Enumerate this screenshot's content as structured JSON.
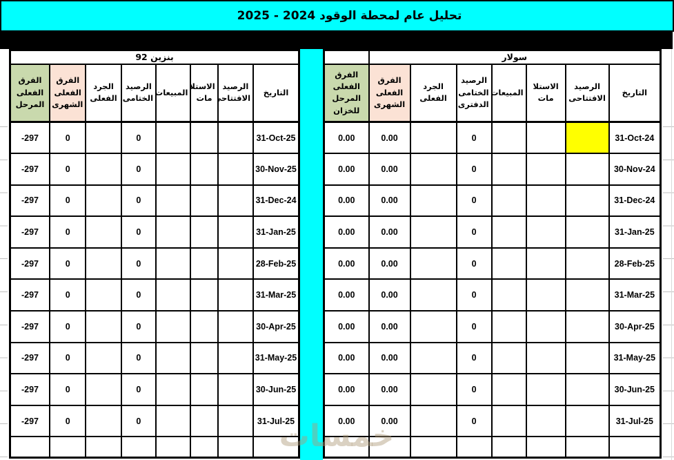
{
  "title": "تحليل عام لمحطة الوقود 2024 - 2025",
  "watermark": "خمسات",
  "colors": {
    "accent_cyan": "#00FFFF",
    "header_green": "#C9D9AD",
    "header_peach": "#FBE2D5",
    "highlight_yellow": "#FFFF00",
    "grid_black": "#000000"
  },
  "benzine_table": {
    "title": "بنزين 92",
    "headers": {
      "date": "التاريخ",
      "opening": "الرصيد الافتتاحى",
      "receipts": "الاستلا مات",
      "sales": "المبيعات",
      "closing": "الرصيد الختامى",
      "inventory": "الجرد الفعلى",
      "monthly_diff": "الفرق الفعلى الشهرى",
      "carried_diff": "الفرق الفعلى المرحل"
    },
    "rows": [
      {
        "date": "31-Oct-25",
        "opening": "",
        "receipts": "",
        "sales": "",
        "closing": "0",
        "inventory": "",
        "monthly_diff": "0",
        "carried_diff": "-297"
      },
      {
        "date": "30-Nov-25",
        "opening": "",
        "receipts": "",
        "sales": "",
        "closing": "0",
        "inventory": "",
        "monthly_diff": "0",
        "carried_diff": "-297"
      },
      {
        "date": "31-Dec-24",
        "opening": "",
        "receipts": "",
        "sales": "",
        "closing": "0",
        "inventory": "",
        "monthly_diff": "0",
        "carried_diff": "-297"
      },
      {
        "date": "31-Jan-25",
        "opening": "",
        "receipts": "",
        "sales": "",
        "closing": "0",
        "inventory": "",
        "monthly_diff": "0",
        "carried_diff": "-297"
      },
      {
        "date": "28-Feb-25",
        "opening": "",
        "receipts": "",
        "sales": "",
        "closing": "0",
        "inventory": "",
        "monthly_diff": "0",
        "carried_diff": "-297"
      },
      {
        "date": "31-Mar-25",
        "opening": "",
        "receipts": "",
        "sales": "",
        "closing": "0",
        "inventory": "",
        "monthly_diff": "0",
        "carried_diff": "-297"
      },
      {
        "date": "30-Apr-25",
        "opening": "",
        "receipts": "",
        "sales": "",
        "closing": "0",
        "inventory": "",
        "monthly_diff": "0",
        "carried_diff": "-297"
      },
      {
        "date": "31-May-25",
        "opening": "",
        "receipts": "",
        "sales": "",
        "closing": "0",
        "inventory": "",
        "monthly_diff": "0",
        "carried_diff": "-297"
      },
      {
        "date": "30-Jun-25",
        "opening": "",
        "receipts": "",
        "sales": "",
        "closing": "0",
        "inventory": "",
        "monthly_diff": "0",
        "carried_diff": "-297"
      },
      {
        "date": "31-Jul-25",
        "opening": "",
        "receipts": "",
        "sales": "",
        "closing": "0",
        "inventory": "",
        "monthly_diff": "0",
        "carried_diff": "-297"
      }
    ]
  },
  "solar_table": {
    "title": "سولار",
    "headers": {
      "date": "التاريخ",
      "opening": "الرصيد الافتتاحى",
      "receipts": "الاستلا مات",
      "sales": "المبيعات",
      "closing": "الرصيد الختامى الدفترى",
      "inventory": "الجرد الفعلى",
      "monthly_diff": "الفرق الفعلى الشهرى",
      "carried_diff": "الفرق الفعلى المرحل للخزان"
    },
    "rows": [
      {
        "date": "31-Oct-24",
        "opening": "",
        "opening_highlight": true,
        "receipts": "",
        "sales": "",
        "closing": "0",
        "inventory": "",
        "monthly_diff": "0.00",
        "carried_diff": "0.00"
      },
      {
        "date": "30-Nov-24",
        "opening": "",
        "receipts": "",
        "sales": "",
        "closing": "0",
        "inventory": "",
        "monthly_diff": "0.00",
        "carried_diff": "0.00"
      },
      {
        "date": "31-Dec-24",
        "opening": "",
        "receipts": "",
        "sales": "",
        "closing": "0",
        "inventory": "",
        "monthly_diff": "0.00",
        "carried_diff": "0.00"
      },
      {
        "date": "31-Jan-25",
        "opening": "",
        "receipts": "",
        "sales": "",
        "closing": "0",
        "inventory": "",
        "monthly_diff": "0.00",
        "carried_diff": "0.00"
      },
      {
        "date": "28-Feb-25",
        "opening": "",
        "receipts": "",
        "sales": "",
        "closing": "0",
        "inventory": "",
        "monthly_diff": "0.00",
        "carried_diff": "0.00"
      },
      {
        "date": "31-Mar-25",
        "opening": "",
        "receipts": "",
        "sales": "",
        "closing": "0",
        "inventory": "",
        "monthly_diff": "0.00",
        "carried_diff": "0.00"
      },
      {
        "date": "30-Apr-25",
        "opening": "",
        "receipts": "",
        "sales": "",
        "closing": "0",
        "inventory": "",
        "monthly_diff": "0.00",
        "carried_diff": "0.00"
      },
      {
        "date": "31-May-25",
        "opening": "",
        "receipts": "",
        "sales": "",
        "closing": "0",
        "inventory": "",
        "monthly_diff": "0.00",
        "carried_diff": "0.00"
      },
      {
        "date": "30-Jun-25",
        "opening": "",
        "receipts": "",
        "sales": "",
        "closing": "0",
        "inventory": "",
        "monthly_diff": "0.00",
        "carried_diff": "0.00"
      },
      {
        "date": "31-Jul-25",
        "opening": "",
        "receipts": "",
        "sales": "",
        "closing": "0",
        "inventory": "",
        "monthly_diff": "0.00",
        "carried_diff": "0.00"
      }
    ]
  }
}
